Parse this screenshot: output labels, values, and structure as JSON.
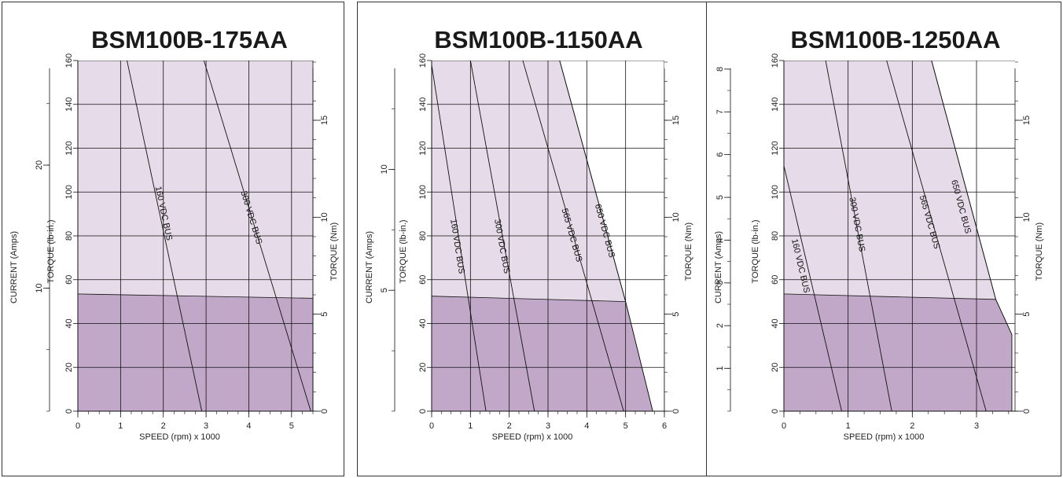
{
  "colors": {
    "intermittent": "#e6dbe8",
    "continuous": "#c1a8c8",
    "grid": "#111111",
    "line": "#111111"
  },
  "chart_data": [
    {
      "type": "area",
      "title": "BSM100B-175AA",
      "xlabel": "SPEED (rpm) x 1000",
      "ylabel_left_outer": "CURRENT (Amps)",
      "ylabel_left_inner": "TORQUE (lb-in.)",
      "ylabel_right": "TORQUE (Nm)",
      "xlim": [
        0,
        5.5
      ],
      "ylim": [
        0,
        160
      ],
      "x_ticks": [
        "0",
        "1",
        "2",
        "3",
        "4",
        "5"
      ],
      "y_ticks": [
        "0",
        "20",
        "40",
        "60",
        "80",
        "100",
        "120",
        "140",
        "160"
      ],
      "current_ticks": [
        "10",
        "20"
      ],
      "current_max": 28.5,
      "nm_ticks": [
        "0",
        "5",
        "10",
        "15"
      ],
      "intermittent_envelope": [
        [
          0,
          160
        ],
        [
          5.5,
          160
        ],
        [
          5.5,
          0
        ],
        [
          0,
          0
        ]
      ],
      "continuous_envelope": [
        [
          0,
          53.5
        ],
        [
          5.5,
          51.5
        ],
        [
          5.5,
          0
        ],
        [
          0,
          0
        ]
      ],
      "bus_lines": [
        {
          "name": "160 VDC BUS",
          "points": [
            [
              1.15,
              160
            ],
            [
              2.9,
              0
            ]
          ],
          "label_at": [
            1.95,
            90
          ]
        },
        {
          "name": "300 VDC BUS",
          "points": [
            [
              2.95,
              160
            ],
            [
              5.45,
              0
            ]
          ],
          "label_at": [
            4.0,
            88
          ]
        }
      ]
    },
    {
      "type": "area",
      "title": "BSM100B-1150AA",
      "xlabel": "SPEED (rpm) x 1000",
      "ylabel_left_outer": "CURRENT (Amps)",
      "ylabel_left_inner": "TORQUE (lb-in.)",
      "ylabel_right": "TORQUE (Nm)",
      "xlim": [
        0,
        6
      ],
      "ylim": [
        0,
        160
      ],
      "x_ticks": [
        "0",
        "1",
        "2",
        "3",
        "4",
        "5",
        "6"
      ],
      "y_ticks": [
        "0",
        "20",
        "40",
        "60",
        "80",
        "100",
        "120",
        "140",
        "160"
      ],
      "current_ticks": [
        "5",
        "10"
      ],
      "current_max": 14.5,
      "nm_ticks": [
        "0",
        "5",
        "10",
        "15"
      ],
      "intermittent_envelope": [
        [
          0,
          160
        ],
        [
          3.3,
          160
        ],
        [
          5.0,
          50
        ],
        [
          5.7,
          0
        ],
        [
          0,
          0
        ]
      ],
      "continuous_envelope": [
        [
          0,
          52.5
        ],
        [
          5.0,
          50
        ],
        [
          5.7,
          0
        ],
        [
          0,
          0
        ]
      ],
      "bus_lines": [
        {
          "name": "160 VDC BUS",
          "points": [
            [
              0,
              158
            ],
            [
              1.4,
              0
            ]
          ],
          "label_at": [
            0.6,
            75
          ]
        },
        {
          "name": "300 VDC BUS",
          "points": [
            [
              1.0,
              160
            ],
            [
              2.65,
              0
            ]
          ],
          "label_at": [
            1.75,
            75
          ]
        },
        {
          "name": "565 VDC BUS",
          "points": [
            [
              2.35,
              160
            ],
            [
              4.95,
              0
            ]
          ],
          "label_at": [
            3.55,
            80
          ]
        },
        {
          "name": "650 VDC BUS",
          "points": [
            [
              3.3,
              160
            ],
            [
              5.0,
              50
            ]
          ],
          "label_at": [
            4.4,
            82
          ]
        }
      ]
    },
    {
      "type": "area",
      "title": "BSM100B-1250AA",
      "xlabel": "SPEED (rpm) x 1000",
      "ylabel_left_outer": "CURRENT (Amps)",
      "ylabel_left_inner": "TORQUE (lb-in.)",
      "ylabel_right": "TORQUE (Nm)",
      "xlim": [
        0,
        3.6
      ],
      "ylim": [
        0,
        160
      ],
      "x_ticks": [
        "0",
        "1",
        "2",
        "3"
      ],
      "y_ticks": [
        "0",
        "20",
        "40",
        "60",
        "80",
        "100",
        "120",
        "140",
        "160"
      ],
      "current_ticks": [
        "1",
        "2",
        "3",
        "4",
        "5",
        "6",
        "7",
        "8"
      ],
      "current_max": 8.2,
      "nm_ticks": [
        "0",
        "5",
        "10",
        "15"
      ],
      "intermittent_envelope": [
        [
          0,
          160
        ],
        [
          2.3,
          160
        ],
        [
          3.3,
          51
        ],
        [
          3.55,
          35
        ],
        [
          3.55,
          0
        ],
        [
          0,
          0
        ]
      ],
      "continuous_envelope": [
        [
          0,
          53.5
        ],
        [
          3.3,
          51
        ],
        [
          3.55,
          35
        ],
        [
          3.55,
          0
        ],
        [
          0,
          0
        ]
      ],
      "bus_lines": [
        {
          "name": "160 VDC BUS",
          "points": [
            [
              0,
              112
            ],
            [
              0.9,
              0
            ]
          ],
          "label_at": [
            0.22,
            66
          ]
        },
        {
          "name": "300 VDC BUS",
          "points": [
            [
              0.65,
              160
            ],
            [
              1.68,
              0
            ]
          ],
          "label_at": [
            1.1,
            85
          ]
        },
        {
          "name": "565 VDC BUS",
          "points": [
            [
              1.6,
              160
            ],
            [
              3.15,
              0
            ]
          ],
          "label_at": [
            2.23,
            86
          ]
        },
        {
          "name": "650 VDC BUS",
          "points": [
            [
              2.3,
              160
            ],
            [
              3.3,
              51
            ]
          ],
          "label_at": [
            2.72,
            93
          ]
        }
      ]
    }
  ]
}
